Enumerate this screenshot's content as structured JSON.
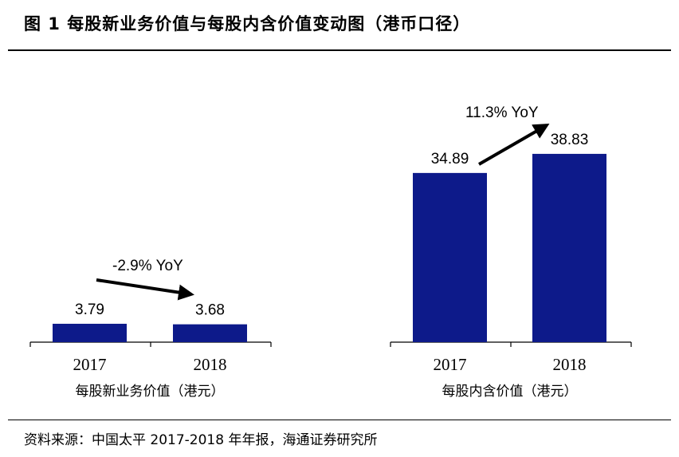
{
  "title": "图 1 每股新业务价值与每股内含价值变动图（港币口径）",
  "source": "资料来源：中国太平 2017-2018 年年报，海通证券研究所",
  "chart_data": [
    {
      "type": "bar",
      "group_label": "每股新业务价值（港元）",
      "categories": [
        "2017",
        "2018"
      ],
      "values": [
        3.79,
        3.68
      ],
      "value_labels": [
        "3.79",
        "3.68"
      ],
      "yoy_label": "-2.9% YoY",
      "color": "#0d1a8a"
    },
    {
      "type": "bar",
      "group_label": "每股内含价值（港元）",
      "categories": [
        "2017",
        "2018"
      ],
      "values": [
        34.89,
        38.83
      ],
      "value_labels": [
        "34.89",
        "38.83"
      ],
      "yoy_label": "11.3% YoY",
      "color": "#0d1a8a"
    }
  ]
}
